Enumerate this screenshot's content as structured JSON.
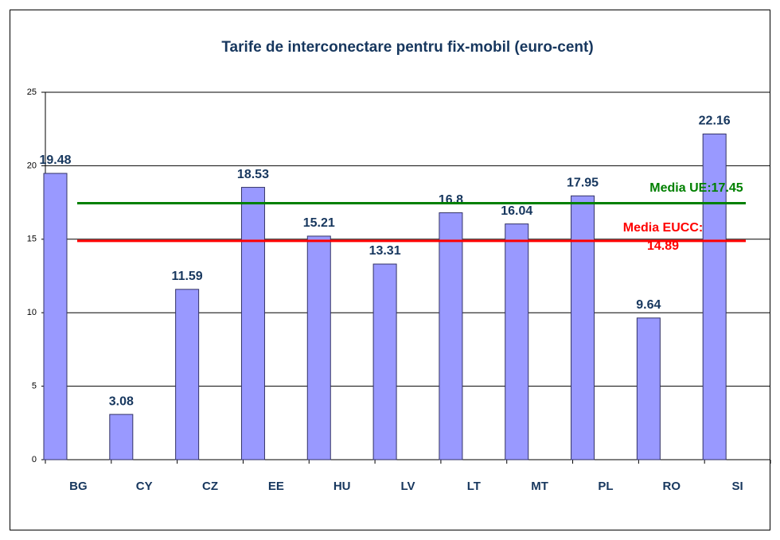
{
  "chart_data": {
    "type": "bar",
    "title": "Tarife de interconectare pentru fix-mobil (euro-cent)",
    "categories": [
      "BG",
      "CY",
      "CZ",
      "EE",
      "HU",
      "LV",
      "LT",
      "MT",
      "PL",
      "RO",
      "SI"
    ],
    "values": [
      19.48,
      3.08,
      11.59,
      18.53,
      15.21,
      13.31,
      16.8,
      16.04,
      17.95,
      9.64,
      22.16
    ],
    "color": "#9999ff",
    "ylim": [
      0,
      25
    ],
    "yticks": [
      0,
      5,
      10,
      15,
      20,
      25
    ],
    "grid": true,
    "reference_lines": [
      {
        "label": [
          "Media UE:17.45"
        ],
        "value": 17.45,
        "color": "#008000"
      },
      {
        "label": [
          "Media EUCC:",
          "14.89"
        ],
        "value": 14.89,
        "color": "#ff0000"
      }
    ]
  }
}
